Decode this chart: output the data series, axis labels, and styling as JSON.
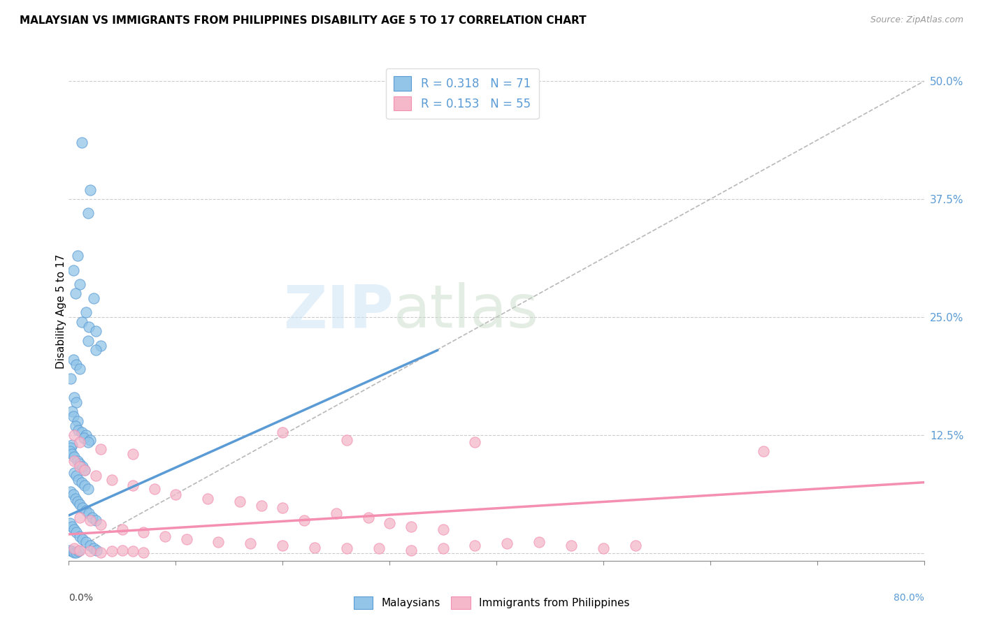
{
  "title": "MALAYSIAN VS IMMIGRANTS FROM PHILIPPINES DISABILITY AGE 5 TO 17 CORRELATION CHART",
  "source": "Source: ZipAtlas.com",
  "ylabel": "Disability Age 5 to 17",
  "yticks": [
    0.0,
    0.125,
    0.25,
    0.375,
    0.5
  ],
  "ytick_labels": [
    "",
    "12.5%",
    "25.0%",
    "37.5%",
    "50.0%"
  ],
  "xlim": [
    0.0,
    0.8
  ],
  "ylim": [
    -0.008,
    0.52
  ],
  "legend_r_blue": "0.318",
  "legend_n_blue": "71",
  "legend_r_pink": "0.153",
  "legend_n_pink": "55",
  "blue_color": "#5b9bd5",
  "pink_color": "#f48fb1",
  "blue_scatter_color": "#92c5e8",
  "pink_scatter_color": "#f4b8ca",
  "trendline_blue": [
    0.0,
    0.04,
    0.345,
    0.215
  ],
  "trendline_pink": [
    0.0,
    0.02,
    0.8,
    0.075
  ],
  "diagonal_line": [
    0.0,
    0.0,
    0.8,
    0.5
  ],
  "blue_points": [
    [
      0.012,
      0.435
    ],
    [
      0.02,
      0.385
    ],
    [
      0.018,
      0.36
    ],
    [
      0.008,
      0.315
    ],
    [
      0.01,
      0.285
    ],
    [
      0.023,
      0.27
    ],
    [
      0.016,
      0.255
    ],
    [
      0.012,
      0.245
    ],
    [
      0.019,
      0.24
    ],
    [
      0.004,
      0.3
    ],
    [
      0.006,
      0.275
    ],
    [
      0.025,
      0.235
    ],
    [
      0.018,
      0.225
    ],
    [
      0.03,
      0.22
    ],
    [
      0.025,
      0.215
    ],
    [
      0.004,
      0.205
    ],
    [
      0.007,
      0.2
    ],
    [
      0.01,
      0.195
    ],
    [
      0.002,
      0.185
    ],
    [
      0.005,
      0.165
    ],
    [
      0.007,
      0.16
    ],
    [
      0.003,
      0.15
    ],
    [
      0.004,
      0.145
    ],
    [
      0.008,
      0.14
    ],
    [
      0.006,
      0.135
    ],
    [
      0.009,
      0.13
    ],
    [
      0.012,
      0.128
    ],
    [
      0.016,
      0.125
    ],
    [
      0.014,
      0.122
    ],
    [
      0.02,
      0.12
    ],
    [
      0.018,
      0.118
    ],
    [
      0.003,
      0.115
    ],
    [
      0.002,
      0.112
    ],
    [
      0.001,
      0.108
    ],
    [
      0.003,
      0.105
    ],
    [
      0.005,
      0.102
    ],
    [
      0.008,
      0.098
    ],
    [
      0.01,
      0.095
    ],
    [
      0.013,
      0.092
    ],
    [
      0.015,
      0.088
    ],
    [
      0.005,
      0.085
    ],
    [
      0.007,
      0.082
    ],
    [
      0.009,
      0.078
    ],
    [
      0.012,
      0.075
    ],
    [
      0.015,
      0.072
    ],
    [
      0.018,
      0.068
    ],
    [
      0.002,
      0.065
    ],
    [
      0.004,
      0.062
    ],
    [
      0.006,
      0.058
    ],
    [
      0.008,
      0.055
    ],
    [
      0.01,
      0.052
    ],
    [
      0.013,
      0.048
    ],
    [
      0.016,
      0.045
    ],
    [
      0.019,
      0.042
    ],
    [
      0.022,
      0.038
    ],
    [
      0.025,
      0.035
    ],
    [
      0.001,
      0.032
    ],
    [
      0.003,
      0.028
    ],
    [
      0.005,
      0.025
    ],
    [
      0.007,
      0.022
    ],
    [
      0.01,
      0.018
    ],
    [
      0.013,
      0.015
    ],
    [
      0.016,
      0.012
    ],
    [
      0.02,
      0.008
    ],
    [
      0.023,
      0.005
    ],
    [
      0.026,
      0.003
    ],
    [
      0.001,
      0.003
    ],
    [
      0.003,
      0.002
    ],
    [
      0.005,
      0.001
    ],
    [
      0.007,
      0.001
    ],
    [
      0.009,
      0.002
    ]
  ],
  "pink_points": [
    [
      0.005,
      0.125
    ],
    [
      0.01,
      0.118
    ],
    [
      0.03,
      0.11
    ],
    [
      0.06,
      0.105
    ],
    [
      0.2,
      0.128
    ],
    [
      0.26,
      0.12
    ],
    [
      0.38,
      0.118
    ],
    [
      0.65,
      0.108
    ],
    [
      0.005,
      0.098
    ],
    [
      0.01,
      0.092
    ],
    [
      0.015,
      0.088
    ],
    [
      0.025,
      0.082
    ],
    [
      0.04,
      0.078
    ],
    [
      0.06,
      0.072
    ],
    [
      0.08,
      0.068
    ],
    [
      0.1,
      0.062
    ],
    [
      0.13,
      0.058
    ],
    [
      0.16,
      0.055
    ],
    [
      0.18,
      0.05
    ],
    [
      0.2,
      0.048
    ],
    [
      0.25,
      0.042
    ],
    [
      0.28,
      0.038
    ],
    [
      0.22,
      0.035
    ],
    [
      0.3,
      0.032
    ],
    [
      0.32,
      0.028
    ],
    [
      0.35,
      0.025
    ],
    [
      0.01,
      0.038
    ],
    [
      0.02,
      0.035
    ],
    [
      0.03,
      0.03
    ],
    [
      0.05,
      0.025
    ],
    [
      0.07,
      0.022
    ],
    [
      0.09,
      0.018
    ],
    [
      0.11,
      0.015
    ],
    [
      0.14,
      0.012
    ],
    [
      0.17,
      0.01
    ],
    [
      0.2,
      0.008
    ],
    [
      0.23,
      0.006
    ],
    [
      0.26,
      0.005
    ],
    [
      0.29,
      0.005
    ],
    [
      0.32,
      0.003
    ],
    [
      0.35,
      0.005
    ],
    [
      0.38,
      0.008
    ],
    [
      0.41,
      0.01
    ],
    [
      0.44,
      0.012
    ],
    [
      0.47,
      0.008
    ],
    [
      0.5,
      0.005
    ],
    [
      0.53,
      0.008
    ],
    [
      0.005,
      0.005
    ],
    [
      0.01,
      0.003
    ],
    [
      0.02,
      0.002
    ],
    [
      0.03,
      0.001
    ],
    [
      0.04,
      0.002
    ],
    [
      0.05,
      0.003
    ],
    [
      0.06,
      0.002
    ],
    [
      0.07,
      0.001
    ]
  ]
}
